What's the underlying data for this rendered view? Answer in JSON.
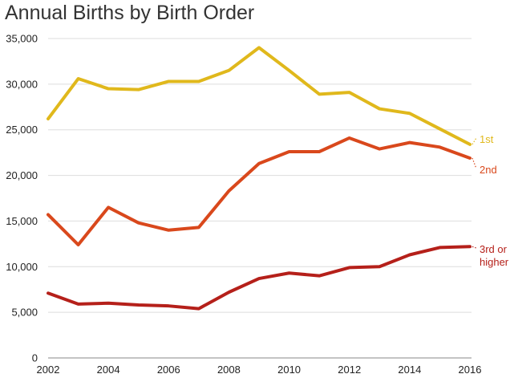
{
  "chart_data": {
    "type": "line",
    "title": "Annual Births by Birth Order",
    "xlabel": "",
    "ylabel": "",
    "x": [
      2002,
      2003,
      2004,
      2005,
      2006,
      2007,
      2008,
      2009,
      2010,
      2011,
      2012,
      2013,
      2014,
      2015,
      2016
    ],
    "x_tick_labels": [
      "2002",
      "2004",
      "2006",
      "2008",
      "2010",
      "2012",
      "2014",
      "2016"
    ],
    "y_tick_labels": [
      "0",
      "5,000",
      "10,000",
      "15,000",
      "20,000",
      "25,000",
      "30,000",
      "35,000"
    ],
    "y_ticks": [
      0,
      5000,
      10000,
      15000,
      20000,
      25000,
      30000,
      35000
    ],
    "xlim": [
      2002,
      2016
    ],
    "ylim": [
      0,
      35000
    ],
    "grid": "horizontal",
    "legend": "labels at right end of lines",
    "series": [
      {
        "name": "1st",
        "label_lines": [
          "1st"
        ],
        "color": "#E0B81C",
        "values": [
          26200,
          30600,
          29500,
          29400,
          30300,
          30300,
          31500,
          34000,
          31500,
          28900,
          29100,
          27300,
          26800,
          25100,
          23400
        ]
      },
      {
        "name": "2nd",
        "label_lines": [
          "2nd"
        ],
        "color": "#D9481C",
        "values": [
          15700,
          12400,
          16500,
          14800,
          14000,
          14300,
          18300,
          21300,
          22600,
          22600,
          24100,
          22900,
          23600,
          23100,
          21900
        ]
      },
      {
        "name": "3rd or higher",
        "label_lines": [
          "3rd or",
          "higher"
        ],
        "color": "#B5201A",
        "values": [
          7100,
          5900,
          6000,
          5800,
          5700,
          5400,
          7200,
          8700,
          9300,
          9000,
          9900,
          10000,
          11300,
          12100,
          12200
        ]
      }
    ]
  }
}
